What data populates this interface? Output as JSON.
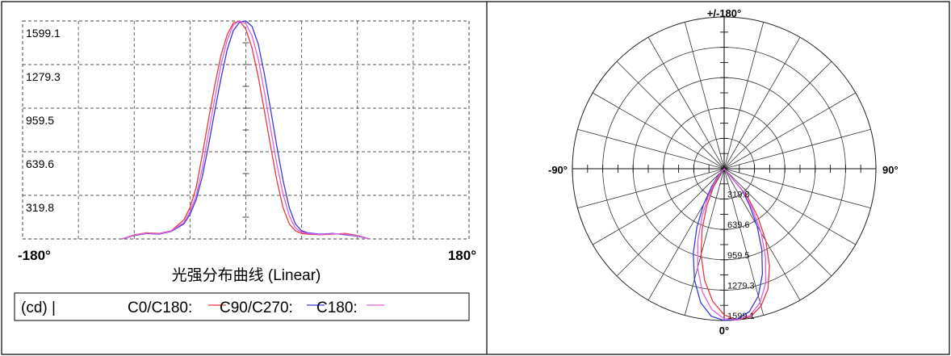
{
  "chart_data": [
    {
      "type": "line",
      "title": "光强分布曲线 (Linear)",
      "unit_label": "(cd) |",
      "x_tick_labels": [
        "-180°",
        "180°"
      ],
      "xlim": [
        -180,
        180
      ],
      "ylim": [
        0,
        1599.1
      ],
      "y_tick_labels": [
        "1599.1",
        "1279.3",
        "959.5",
        "639.6",
        "319.8"
      ],
      "grid": true,
      "legend_placement": "bottom",
      "series": [
        {
          "name": "C0/C180:",
          "color": "#e8383d",
          "x": [
            -100,
            -90,
            -80,
            -70,
            -60,
            -50,
            -45,
            -40,
            -35,
            -30,
            -25,
            -20,
            -15,
            -10,
            -5,
            0,
            5,
            10,
            15,
            20,
            25,
            30,
            35,
            40,
            45,
            50,
            60,
            70,
            80,
            90,
            100
          ],
          "y": [
            0,
            30,
            45,
            40,
            60,
            140,
            230,
            380,
            620,
            880,
            1130,
            1350,
            1500,
            1585,
            1599,
            1540,
            1400,
            1190,
            940,
            680,
            430,
            230,
            110,
            60,
            40,
            35,
            30,
            35,
            40,
            25,
            0
          ]
        },
        {
          "name": "C90/C270:",
          "color": "#3a3ad8",
          "x": [
            -100,
            -90,
            -80,
            -70,
            -60,
            -50,
            -45,
            -40,
            -35,
            -30,
            -25,
            -20,
            -15,
            -10,
            -5,
            0,
            5,
            10,
            15,
            20,
            25,
            30,
            35,
            40,
            45,
            50,
            60,
            70,
            80,
            90,
            100
          ],
          "y": [
            0,
            25,
            40,
            35,
            55,
            110,
            180,
            290,
            460,
            690,
            940,
            1180,
            1390,
            1530,
            1590,
            1599,
            1560,
            1430,
            1210,
            950,
            680,
            430,
            230,
            110,
            60,
            45,
            35,
            40,
            30,
            20,
            0
          ]
        },
        {
          "name": "C180:",
          "color": "#e060e0",
          "x": [
            -100,
            -90,
            -80,
            -70,
            -60,
            -50,
            -45,
            -40,
            -35,
            -30,
            -25,
            -20,
            -15,
            -10,
            -5,
            0,
            5,
            10,
            15,
            20,
            25,
            30,
            35,
            40,
            45,
            50,
            60,
            70,
            80,
            90,
            100
          ],
          "y": [
            0,
            28,
            42,
            38,
            58,
            120,
            200,
            320,
            520,
            780,
            1030,
            1280,
            1460,
            1570,
            1599,
            1580,
            1490,
            1320,
            1080,
            810,
            550,
            330,
            170,
            80,
            50,
            40,
            32,
            38,
            35,
            22,
            0
          ]
        }
      ]
    },
    {
      "type": "polar",
      "angle_labels": [
        "+/-180°",
        "-90°",
        "90°",
        "0°"
      ],
      "radial_tick_labels": [
        "319.8",
        "639.6",
        "959.5",
        "1279.3",
        "1599.1"
      ],
      "rmax": 1599.1,
      "grid": true,
      "series": [
        {
          "color": "#e8383d",
          "angle": [
            -40,
            -35,
            -30,
            -25,
            -20,
            -15,
            -10,
            -5,
            0,
            5,
            10,
            15,
            20,
            25,
            30,
            35,
            40
          ],
          "r": [
            60,
            110,
            230,
            430,
            680,
            940,
            1190,
            1400,
            1540,
            1599,
            1585,
            1500,
            1350,
            1130,
            880,
            620,
            380
          ]
        },
        {
          "color": "#3a3ad8",
          "angle": [
            -40,
            -35,
            -30,
            -25,
            -20,
            -15,
            -10,
            -5,
            0,
            5,
            10,
            15,
            20,
            25,
            30,
            35,
            40
          ],
          "r": [
            110,
            230,
            430,
            680,
            950,
            1210,
            1430,
            1560,
            1599,
            1590,
            1530,
            1390,
            1180,
            940,
            690,
            460,
            290
          ]
        },
        {
          "color": "#e060e0",
          "angle": [
            -40,
            -35,
            -30,
            -25,
            -20,
            -15,
            -10,
            -5,
            0,
            5,
            10,
            15,
            20,
            25,
            30,
            35,
            40
          ],
          "r": [
            80,
            170,
            330,
            550,
            810,
            1080,
            1320,
            1490,
            1580,
            1599,
            1570,
            1460,
            1280,
            1030,
            780,
            520,
            320
          ]
        }
      ]
    }
  ]
}
